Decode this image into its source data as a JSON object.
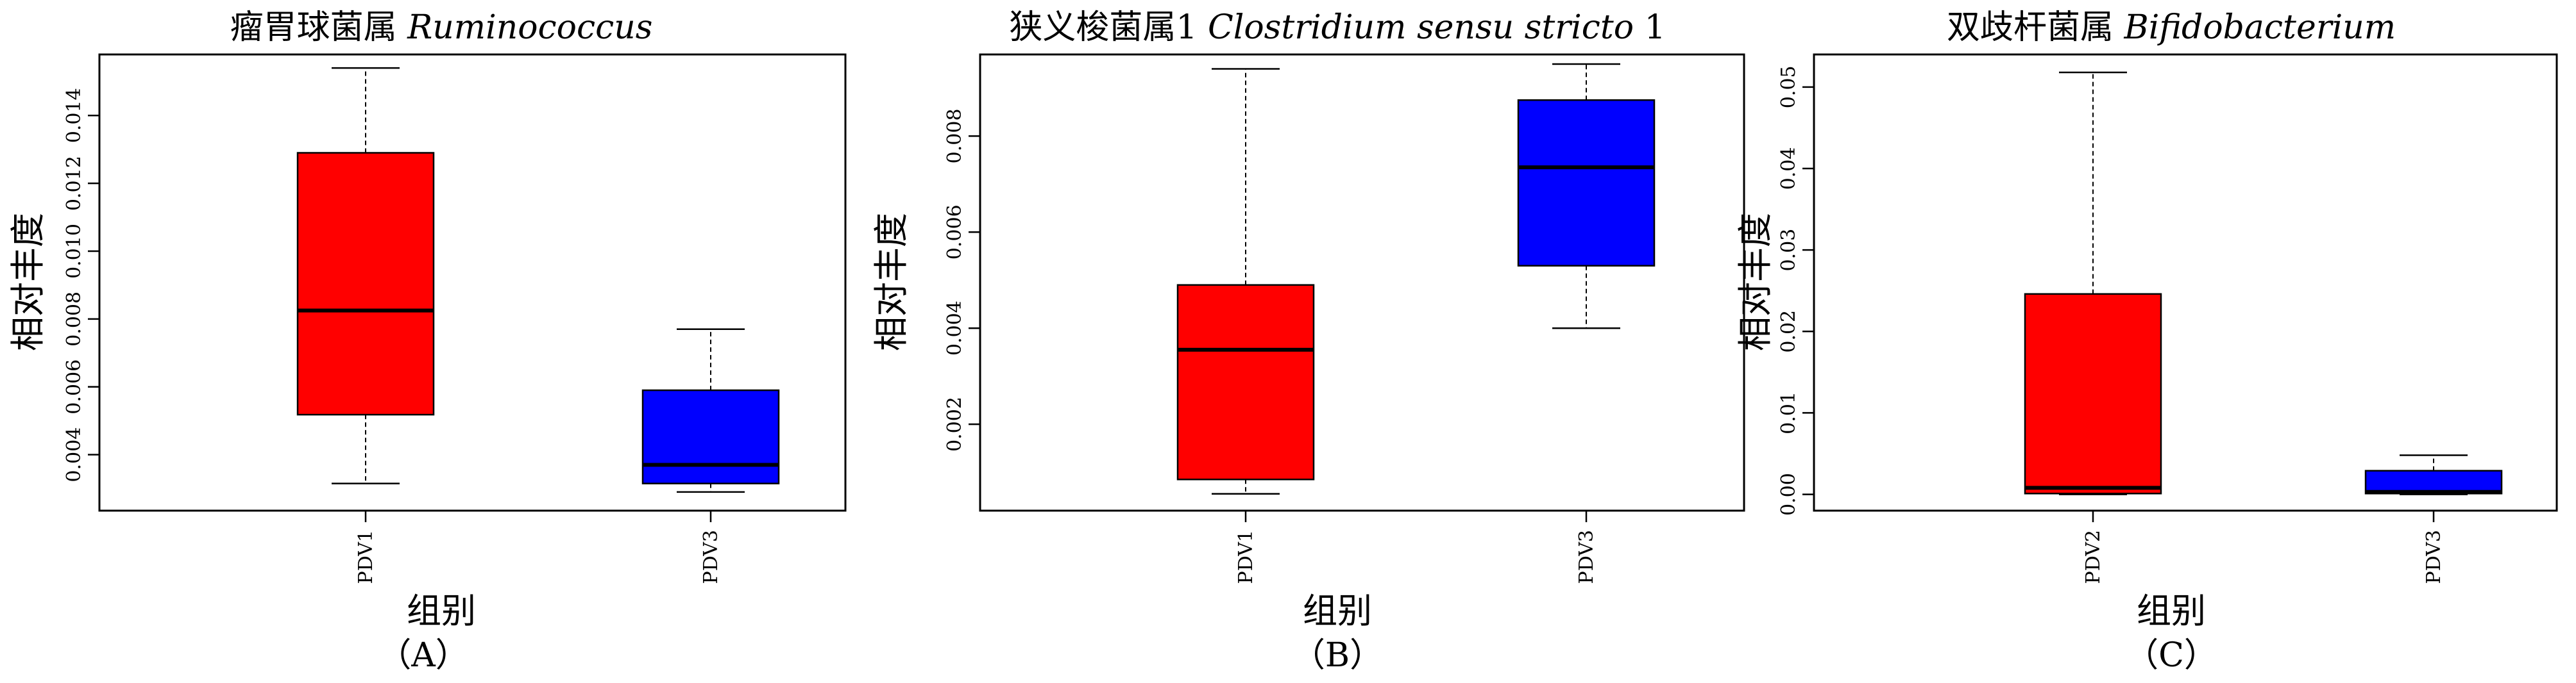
{
  "colors": {
    "group_a": "#ff0000",
    "group_b": "#0000ff",
    "axis": "#000000"
  },
  "panels": [
    {
      "title_cn": "瘤胃球菌属",
      "title_latin": "Ruminococcus",
      "title_suffix": "",
      "ylabel": "相对丰度",
      "xlabel": "组别",
      "panel_label": "（A）"
    },
    {
      "title_cn": "狭义梭菌属1",
      "title_latin": "Clostridium sensu stricto",
      "title_suffix": "1",
      "ylabel": "相对丰度",
      "xlabel": "组别",
      "panel_label": "（B）"
    },
    {
      "title_cn": "双歧杆菌属",
      "title_latin": "Bifidobacterium",
      "title_suffix": "",
      "ylabel": "相对丰度",
      "xlabel": "组别",
      "panel_label": "（C）"
    }
  ],
  "chart_data": [
    {
      "type": "box",
      "ylim": [
        0.00235,
        0.0158
      ],
      "yticks": [
        "0.004",
        "0.006",
        "0.008",
        "0.010",
        "0.012",
        "0.014"
      ],
      "grid": false,
      "groups": [
        {
          "name": "PDV1",
          "color": "#ff0000",
          "min": 0.00315,
          "q1": 0.00518,
          "median": 0.00825,
          "q3": 0.0129,
          "max": 0.0154
        },
        {
          "name": "PDV3",
          "color": "#0000ff",
          "min": 0.0029,
          "q1": 0.00315,
          "median": 0.0037,
          "q3": 0.0059,
          "max": 0.0077
        }
      ]
    },
    {
      "type": "box",
      "ylim": [
        0.0002,
        0.0097
      ],
      "yticks": [
        "0.002",
        "0.004",
        "0.006",
        "0.008"
      ],
      "grid": false,
      "groups": [
        {
          "name": "PDV1",
          "color": "#ff0000",
          "min": 0.00055,
          "q1": 0.00085,
          "median": 0.00355,
          "q3": 0.0049,
          "max": 0.0094
        },
        {
          "name": "PDV3",
          "color": "#0000ff",
          "min": 0.004,
          "q1": 0.0053,
          "median": 0.00735,
          "q3": 0.00875,
          "max": 0.0095
        }
      ]
    },
    {
      "type": "box",
      "ylim": [
        -0.002,
        0.054
      ],
      "yticks": [
        "0.00",
        "0.01",
        "0.02",
        "0.03",
        "0.04",
        "0.05"
      ],
      "grid": false,
      "groups": [
        {
          "name": "PDV2",
          "color": "#ff0000",
          "min": 0.0,
          "q1": 0.0001,
          "median": 0.0008,
          "q3": 0.0246,
          "max": 0.0518
        },
        {
          "name": "PDV3",
          "color": "#0000ff",
          "min": 0.0,
          "q1": 0.0001,
          "median": 0.0003,
          "q3": 0.0029,
          "max": 0.0048
        }
      ]
    }
  ]
}
